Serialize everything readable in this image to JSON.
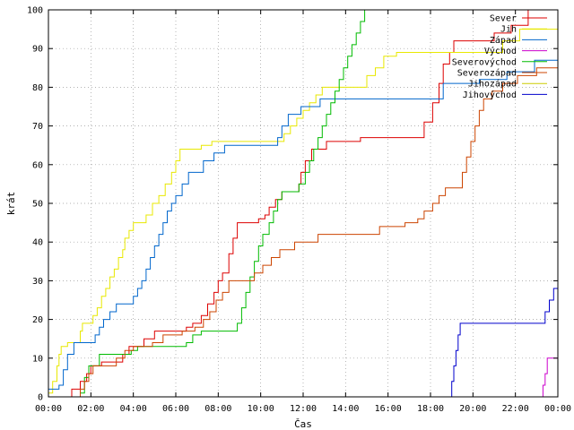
{
  "chart_data": {
    "type": "line",
    "title": "",
    "xlabel": "Čas",
    "ylabel": "krát",
    "xlim": [
      0,
      24
    ],
    "ylim": [
      0,
      100
    ],
    "x_ticks": [
      "00:00",
      "02:00",
      "04:00",
      "06:00",
      "08:00",
      "10:00",
      "12:00",
      "14:00",
      "16:00",
      "18:00",
      "20:00",
      "22:00",
      "00:00"
    ],
    "y_ticks": [
      0,
      10,
      20,
      30,
      40,
      50,
      60,
      70,
      80,
      90,
      100
    ],
    "grid": true,
    "legend_position": "top-right",
    "series": [
      {
        "name": "Sever",
        "color": "#dd0000",
        "step": true,
        "points": [
          [
            1.0,
            0
          ],
          [
            1.1,
            2
          ],
          [
            1.5,
            4
          ],
          [
            1.8,
            6
          ],
          [
            2.0,
            8
          ],
          [
            2.5,
            9
          ],
          [
            3.5,
            11
          ],
          [
            3.8,
            13
          ],
          [
            4.5,
            15
          ],
          [
            5.0,
            17
          ],
          [
            6.5,
            18
          ],
          [
            6.8,
            19
          ],
          [
            7.2,
            21
          ],
          [
            7.5,
            24
          ],
          [
            7.8,
            27
          ],
          [
            8.0,
            30
          ],
          [
            8.2,
            32
          ],
          [
            8.5,
            37
          ],
          [
            8.7,
            41
          ],
          [
            8.9,
            45
          ],
          [
            9.9,
            46
          ],
          [
            10.2,
            47
          ],
          [
            10.4,
            49
          ],
          [
            10.7,
            51
          ],
          [
            11.0,
            53
          ],
          [
            11.8,
            55
          ],
          [
            11.9,
            58
          ],
          [
            12.1,
            61
          ],
          [
            12.4,
            64
          ],
          [
            13.1,
            66
          ],
          [
            14.7,
            67
          ],
          [
            17.7,
            71
          ],
          [
            18.1,
            76
          ],
          [
            18.4,
            81
          ],
          [
            18.6,
            86
          ],
          [
            18.9,
            89
          ],
          [
            19.1,
            92
          ],
          [
            21.0,
            94
          ],
          [
            21.8,
            96
          ],
          [
            22.6,
            100
          ],
          [
            24,
            100
          ]
        ]
      },
      {
        "name": "Jih",
        "color": "#e8e800",
        "step": true,
        "points": [
          [
            0,
            1
          ],
          [
            0.2,
            4
          ],
          [
            0.4,
            8
          ],
          [
            0.5,
            11
          ],
          [
            0.6,
            13
          ],
          [
            0.9,
            14
          ],
          [
            1.5,
            17
          ],
          [
            1.6,
            19
          ],
          [
            2.1,
            21
          ],
          [
            2.3,
            23
          ],
          [
            2.5,
            26
          ],
          [
            2.7,
            28
          ],
          [
            2.9,
            31
          ],
          [
            3.1,
            33
          ],
          [
            3.3,
            36
          ],
          [
            3.5,
            38
          ],
          [
            3.6,
            41
          ],
          [
            3.8,
            43
          ],
          [
            4.0,
            45
          ],
          [
            4.6,
            47
          ],
          [
            4.9,
            50
          ],
          [
            5.2,
            52
          ],
          [
            5.5,
            55
          ],
          [
            5.8,
            58
          ],
          [
            6.0,
            61
          ],
          [
            6.2,
            64
          ],
          [
            7.2,
            65
          ],
          [
            7.7,
            66
          ],
          [
            11.1,
            68
          ],
          [
            11.4,
            70
          ],
          [
            11.7,
            72
          ],
          [
            12.0,
            74
          ],
          [
            12.3,
            76
          ],
          [
            12.6,
            78
          ],
          [
            12.9,
            80
          ],
          [
            15.0,
            83
          ],
          [
            15.4,
            85
          ],
          [
            15.8,
            88
          ],
          [
            16.4,
            89
          ],
          [
            21.4,
            92
          ],
          [
            22.2,
            95
          ],
          [
            24,
            95
          ]
        ]
      },
      {
        "name": "Západ",
        "color": "#0066cc",
        "step": true,
        "points": [
          [
            0,
            2
          ],
          [
            0.5,
            3
          ],
          [
            0.7,
            7
          ],
          [
            0.9,
            11
          ],
          [
            1.2,
            14
          ],
          [
            2.2,
            16
          ],
          [
            2.4,
            18
          ],
          [
            2.6,
            20
          ],
          [
            2.9,
            22
          ],
          [
            3.2,
            24
          ],
          [
            4.0,
            26
          ],
          [
            4.2,
            28
          ],
          [
            4.4,
            30
          ],
          [
            4.6,
            33
          ],
          [
            4.8,
            36
          ],
          [
            5.0,
            39
          ],
          [
            5.2,
            42
          ],
          [
            5.4,
            45
          ],
          [
            5.6,
            48
          ],
          [
            5.8,
            50
          ],
          [
            6.0,
            52
          ],
          [
            6.3,
            55
          ],
          [
            6.6,
            58
          ],
          [
            7.3,
            61
          ],
          [
            7.8,
            63
          ],
          [
            8.3,
            65
          ],
          [
            10.8,
            67
          ],
          [
            11.0,
            70
          ],
          [
            11.3,
            73
          ],
          [
            11.9,
            75
          ],
          [
            12.8,
            77
          ],
          [
            18.6,
            81
          ],
          [
            20.3,
            82
          ],
          [
            21.6,
            84
          ],
          [
            22.9,
            87
          ],
          [
            24,
            87
          ]
        ]
      },
      {
        "name": "Východ",
        "color": "#cc00cc",
        "step": true,
        "points": [
          [
            23.2,
            0
          ],
          [
            23.3,
            3
          ],
          [
            23.4,
            6
          ],
          [
            23.5,
            10
          ],
          [
            24,
            10
          ]
        ]
      },
      {
        "name": "Severovýchod",
        "color": "#00bb00",
        "step": true,
        "points": [
          [
            0,
            0
          ],
          [
            1.5,
            1
          ],
          [
            1.7,
            5
          ],
          [
            1.9,
            8
          ],
          [
            2.4,
            11
          ],
          [
            3.9,
            12
          ],
          [
            4.2,
            13
          ],
          [
            6.5,
            14
          ],
          [
            6.8,
            16
          ],
          [
            7.2,
            17
          ],
          [
            8.9,
            19
          ],
          [
            9.1,
            23
          ],
          [
            9.3,
            27
          ],
          [
            9.5,
            31
          ],
          [
            9.7,
            35
          ],
          [
            9.9,
            39
          ],
          [
            10.1,
            42
          ],
          [
            10.4,
            45
          ],
          [
            10.6,
            48
          ],
          [
            10.8,
            51
          ],
          [
            11.0,
            53
          ],
          [
            11.8,
            55
          ],
          [
            12.1,
            58
          ],
          [
            12.3,
            61
          ],
          [
            12.5,
            64
          ],
          [
            12.7,
            67
          ],
          [
            12.9,
            70
          ],
          [
            13.1,
            73
          ],
          [
            13.3,
            76
          ],
          [
            13.5,
            79
          ],
          [
            13.7,
            82
          ],
          [
            13.9,
            85
          ],
          [
            14.1,
            88
          ],
          [
            14.3,
            91
          ],
          [
            14.5,
            94
          ],
          [
            14.7,
            97
          ],
          [
            14.9,
            100
          ],
          [
            15.0,
            100
          ]
        ]
      },
      {
        "name": "Severozápad",
        "color": "#cc4400",
        "step": true,
        "points": [
          [
            0,
            0
          ],
          [
            1.5,
            2
          ],
          [
            1.7,
            4
          ],
          [
            1.9,
            6
          ],
          [
            2.1,
            8
          ],
          [
            3.2,
            10
          ],
          [
            3.6,
            12
          ],
          [
            4.0,
            13
          ],
          [
            4.9,
            14
          ],
          [
            5.4,
            16
          ],
          [
            6.3,
            17
          ],
          [
            6.9,
            18
          ],
          [
            7.3,
            20
          ],
          [
            7.6,
            22
          ],
          [
            7.9,
            25
          ],
          [
            8.2,
            27
          ],
          [
            8.5,
            30
          ],
          [
            9.7,
            32
          ],
          [
            10.1,
            34
          ],
          [
            10.5,
            36
          ],
          [
            10.9,
            38
          ],
          [
            11.6,
            40
          ],
          [
            12.7,
            42
          ],
          [
            15.6,
            44
          ],
          [
            16.8,
            45
          ],
          [
            17.4,
            46
          ],
          [
            17.7,
            48
          ],
          [
            18.1,
            50
          ],
          [
            18.4,
            52
          ],
          [
            18.7,
            54
          ],
          [
            19.5,
            58
          ],
          [
            19.7,
            62
          ],
          [
            19.9,
            66
          ],
          [
            20.1,
            70
          ],
          [
            20.3,
            74
          ],
          [
            20.5,
            77
          ],
          [
            20.9,
            79
          ],
          [
            21.4,
            81
          ],
          [
            22.1,
            83
          ],
          [
            23.0,
            85
          ],
          [
            24,
            85
          ]
        ]
      },
      {
        "name": "Jihozápad",
        "color": "#cccc00",
        "step": true,
        "points": []
      },
      {
        "name": "Jihovýchod",
        "color": "#0000cc",
        "step": true,
        "points": [
          [
            18.9,
            0
          ],
          [
            19.0,
            4
          ],
          [
            19.1,
            8
          ],
          [
            19.2,
            12
          ],
          [
            19.3,
            16
          ],
          [
            19.4,
            19
          ],
          [
            23.2,
            19
          ],
          [
            23.4,
            22
          ],
          [
            23.6,
            25
          ],
          [
            23.8,
            28
          ],
          [
            24,
            28
          ]
        ]
      }
    ]
  }
}
